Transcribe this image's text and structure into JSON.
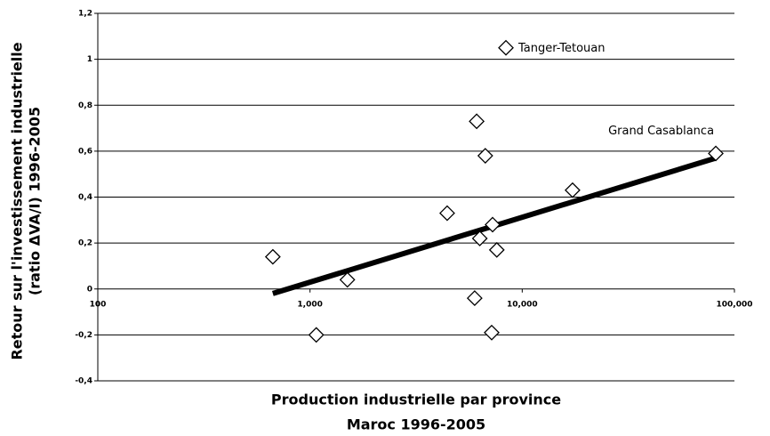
{
  "chart_data": {
    "type": "scatter",
    "xlabel": [
      "Production industrielle par province",
      "Maroc 1996-2005"
    ],
    "ylabel": [
      "Retour sur l'investissement  industrielle",
      "(ratio ΔVA/I) 1996-2005"
    ],
    "xscale": "log",
    "xlim": [
      100,
      100000
    ],
    "xticks": [
      100,
      {
        "value": 1000,
        "label": "1,000"
      },
      {
        "value": 10000,
        "label": "10,000"
      },
      {
        "value": 100000,
        "label": "100,000"
      }
    ],
    "ylim": [
      -0.4,
      1.2
    ],
    "yticks": [
      {
        "value": -0.4,
        "label": "-0,4"
      },
      {
        "value": -0.2,
        "label": "-0,2"
      },
      0,
      {
        "value": 0.2,
        "label": "0,2"
      },
      {
        "value": 0.4,
        "label": "0,4"
      },
      {
        "value": 0.6,
        "label": "0,6"
      },
      {
        "value": 0.8,
        "label": "0,8"
      },
      1,
      {
        "value": 1.2,
        "label": "1,2"
      }
    ],
    "grid": true,
    "series": [
      {
        "color": "#000000",
        "x": [
          668,
          1070,
          1500,
          4430,
          6100,
          6700,
          6310,
          7250,
          7590,
          5970,
          7180,
          8380,
          17260,
          81700
        ],
        "values": [
          0.14,
          -0.2,
          0.04,
          0.33,
          0.73,
          0.58,
          0.22,
          0.28,
          0.17,
          -0.04,
          -0.19,
          1.05,
          0.43,
          0.59
        ]
      }
    ],
    "trendline": {
      "color": "#000000",
      "x": [
        668,
        81700
      ],
      "values": [
        -0.02,
        0.57
      ]
    },
    "annotations": [
      {
        "text": "Tanger-Tetouan",
        "x": 8380,
        "y": 1.05
      },
      {
        "text": "Grand Casablanca",
        "x": 81700,
        "y": 0.59
      }
    ]
  }
}
